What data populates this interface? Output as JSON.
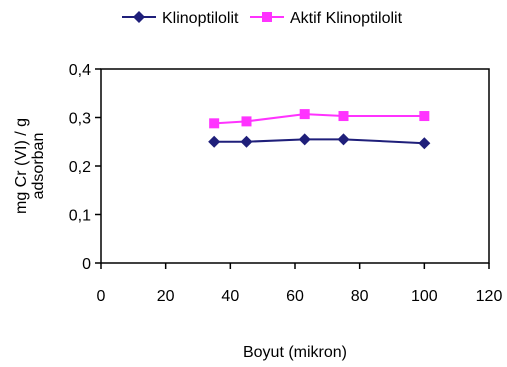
{
  "chart_data": {
    "type": "line",
    "title": "",
    "xlabel": "Boyut (mikron)",
    "ylabel": [
      "mg Cr (VI) / g",
      "adsorban"
    ],
    "xlim": [
      0,
      120
    ],
    "ylim": [
      0,
      0.4
    ],
    "x_ticks": [
      0,
      20,
      40,
      60,
      80,
      100,
      120
    ],
    "x_tick_labels": [
      "0",
      "20",
      "40",
      "60",
      "80",
      "100",
      "120"
    ],
    "y_ticks": [
      0,
      0.1,
      0.2,
      0.3,
      0.4
    ],
    "y_tick_labels": [
      "0",
      "0,1",
      "0,2",
      "0,3",
      "0,4"
    ],
    "grid": false,
    "legend_position": "top",
    "series": [
      {
        "name": "Klinoptilolit",
        "color": "#1f1f7a",
        "marker": "diamond",
        "x": [
          35,
          45,
          63,
          75,
          100
        ],
        "y": [
          0.25,
          0.25,
          0.255,
          0.255,
          0.247
        ]
      },
      {
        "name": "Aktif Klinoptilolit",
        "color": "#ff33ff",
        "marker": "square",
        "x": [
          35,
          45,
          63,
          75,
          100
        ],
        "y": [
          0.288,
          0.292,
          0.307,
          0.303,
          0.303
        ]
      }
    ]
  }
}
